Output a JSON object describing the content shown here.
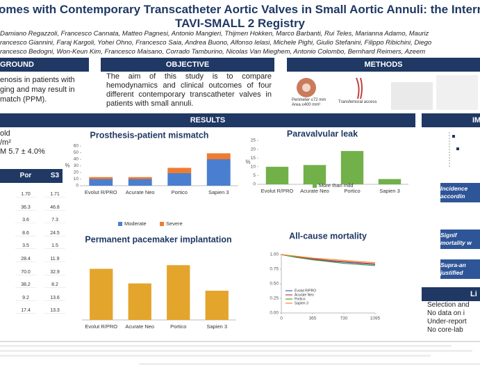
{
  "header": {
    "title_line1": "omes with Contemporary Transcatheter Aortic Valves in Small Aortic Annuli: the International",
    "title_line2": "TAVI-SMALL 2 Registry",
    "authors": [
      "Damiano Regazzoli, Francesco Cannata, Matteo Pagnesi, Antonio Mangieri, Thijmen Hokken, Marco Barbanti, Rui Teles, Marianna Adamo, Mauriz",
      "rancesco Giannini, Faraj Kargoli, Yohei Ohno, Francesco Saia, Andrea Buono, Alfonso Ielasi, Michele Pighi, Giulio Stefanini, Filippo Ribichini, Diego",
      "rancesco Bedogni, Won-Keun Kim, Francesco Maisano, Corrado Tamburino, Nicolas Van Mieghem, Antonio Colombo, Bernhard Reimers, Azeem"
    ]
  },
  "background": {
    "heading": "GROUND",
    "lines": [
      "enosis in patients with",
      "ging and may result in",
      "match (PPM)."
    ]
  },
  "objective": {
    "heading": "OBJECTIVE",
    "text": "The aim of this study is to compare hemodynamics and clinical outcomes of four different contemporary transcatheter valves in patients with small annuli."
  },
  "methods": {
    "heading": "METHODS",
    "perimeter": "Perimeter ≤72 mm",
    "area": "Area ≤400 mm²",
    "access": "Transfemoral access"
  },
  "results": {
    "heading": "RESULTS",
    "left_lines": [
      "old",
      "/m²",
      "M 5.7 ± 4.0%"
    ],
    "table": {
      "header": [
        "Por",
        "S3"
      ],
      "rows": [
        [
          "1.70",
          "1.71"
        ],
        [
          "36.3",
          "46.8"
        ],
        [
          "3.6",
          "7.3"
        ],
        [
          "8.6",
          "24.5"
        ],
        [
          "3.5",
          "1.5"
        ],
        [
          "28.4",
          "11.9"
        ],
        [
          "70.0",
          "32.9"
        ],
        [
          "38.2",
          "8.2"
        ],
        [
          "9.2",
          "13.6"
        ],
        [
          "17.4",
          "13.3"
        ]
      ]
    }
  },
  "implications": {
    "heading": "IM",
    "boxes": [
      [
        "Incidence",
        "accordin"
      ],
      [
        "Signif",
        "mortality w"
      ],
      [
        "Supra-an",
        "justified"
      ]
    ]
  },
  "limitations": {
    "heading": "Li",
    "items": [
      "Selection and",
      "No data on i",
      "Under-report",
      "No core-lab"
    ]
  },
  "chart_data": [
    {
      "type": "bar",
      "title": "Prosthesis-patient mismatch",
      "y_label": "%",
      "stacked": true,
      "categories": [
        "Evolut R/PRO",
        "Acurate Neo",
        "Portico",
        "Sapien 3"
      ],
      "series": [
        {
          "name": "Moderate",
          "color": "#4a7fd0",
          "values": [
            10,
            10,
            19,
            40
          ]
        },
        {
          "name": "Severe",
          "color": "#ee7b30",
          "values": [
            3,
            3,
            8,
            9
          ]
        }
      ],
      "ylim": [
        0,
        60
      ],
      "yticks": [
        0,
        10,
        20,
        30,
        40,
        50,
        60
      ]
    },
    {
      "type": "bar",
      "title": "Paravalvular leak",
      "y_label": "%",
      "categories": [
        "Evolut R/PRO",
        "Acurate Neo",
        "Portico",
        "Sapien 3"
      ],
      "series": [
        {
          "name": "More than mild",
          "color": "#72b04a",
          "values": [
            10,
            11,
            19,
            3
          ]
        }
      ],
      "ylim": [
        0,
        25
      ],
      "yticks": [
        0,
        5,
        10,
        15,
        20,
        25
      ]
    },
    {
      "type": "bar",
      "title": "Permanent pacemaker implantation",
      "categories": [
        "Evolut R/PRO",
        "Acurate Neo",
        "Portico",
        "Sapien 3"
      ],
      "series": [
        {
          "color": "#e3a52c",
          "values": [
            14,
            10,
            15,
            8
          ]
        }
      ],
      "ylim": [
        0,
        20
      ]
    },
    {
      "type": "line",
      "title": "All-cause mortality",
      "x": [
        0,
        182,
        365,
        547,
        730,
        912,
        1095
      ],
      "series": [
        {
          "name": "Evolut R/PRO",
          "color": "#3a66c4",
          "values": [
            1,
            0.95,
            0.92,
            0.89,
            0.87,
            0.85,
            0.83
          ]
        },
        {
          "name": "Acurate Neo",
          "color": "#d23c3c",
          "values": [
            1,
            0.96,
            0.93,
            0.9,
            0.88,
            0.86,
            0.84
          ]
        },
        {
          "name": "Portico",
          "color": "#3f9b4a",
          "values": [
            1,
            0.95,
            0.91,
            0.88,
            0.85,
            0.83,
            0.81
          ]
        },
        {
          "name": "Sapien 3",
          "color": "#ef8a2c",
          "values": [
            1,
            0.97,
            0.94,
            0.92,
            0.9,
            0.88,
            0.86
          ]
        }
      ],
      "xlim": [
        0,
        1095
      ],
      "xticks": [
        0,
        365,
        730,
        1095
      ],
      "ylim": [
        0,
        1
      ],
      "yticks": [
        {
          "value": 0,
          "label": "0.00"
        },
        {
          "value": 0.25,
          "label": "0.25"
        },
        {
          "value": 0.5,
          "label": "0.50"
        },
        {
          "value": 0.75,
          "label": "0.75"
        },
        {
          "value": 1,
          "label": "1.00"
        }
      ]
    }
  ]
}
